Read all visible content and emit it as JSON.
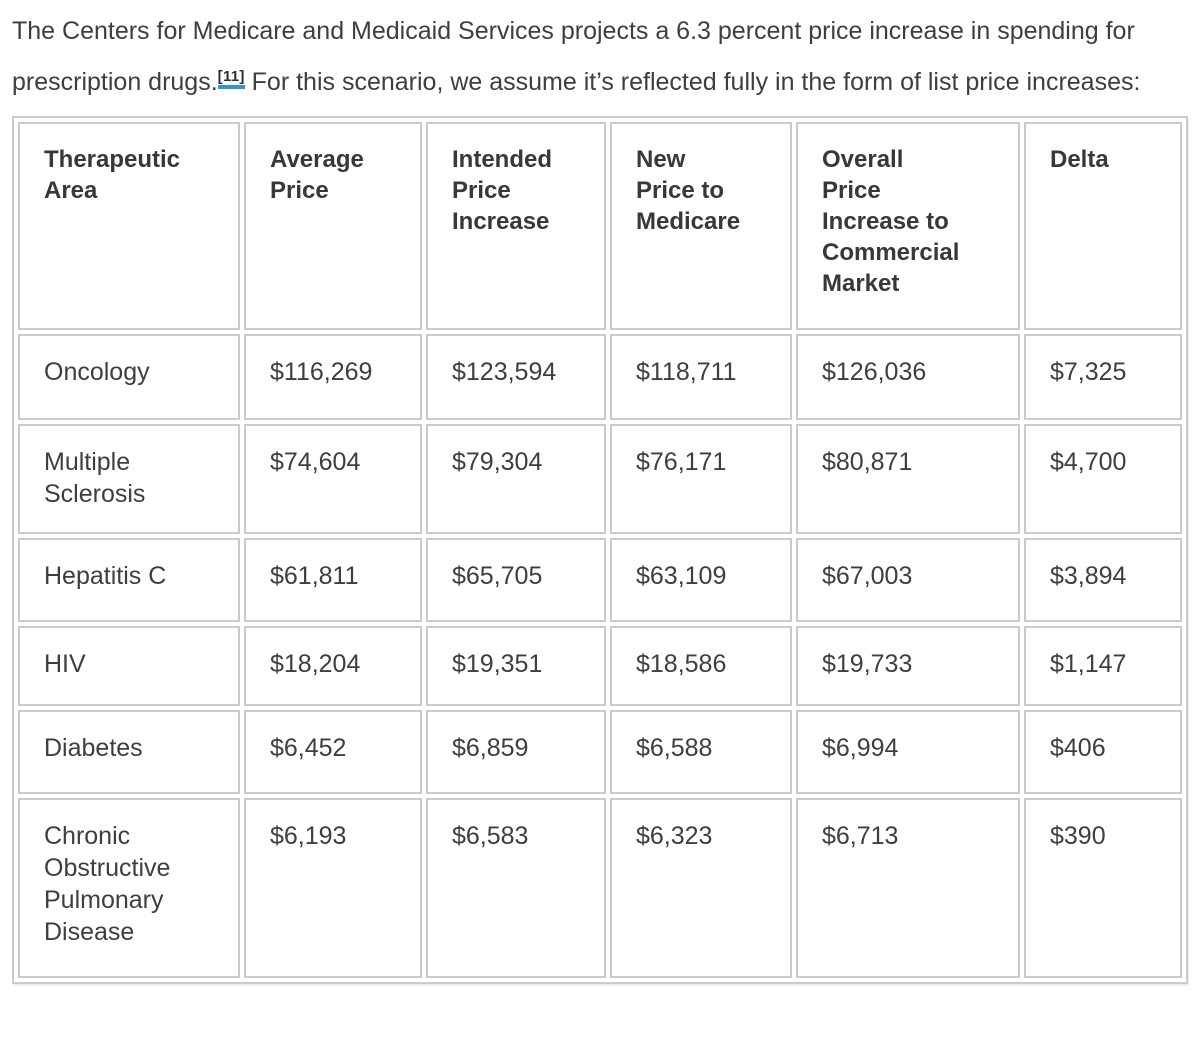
{
  "intro": {
    "text_before_ref": "The Centers for Medicare and Medicaid Services projects a 6.3 percent price increase in spending for prescription drugs.",
    "footnote_ref": "[11]",
    "text_after_ref": " For this scenario, we assume it’s reflected fully in the form of list price increases:"
  },
  "table": {
    "columns": [
      "Therapeutic Area",
      "Average Price",
      "Intended Price Increase",
      "New Price to Medicare",
      "Overall Price Increase to Commercial Market",
      "Delta"
    ],
    "rows": [
      [
        "Oncology",
        "$116,269",
        "$123,594",
        "$118,711",
        "$126,036",
        "$7,325"
      ],
      [
        "Multiple Sclerosis",
        "$74,604",
        "$79,304",
        "$76,171",
        "$80,871",
        "$4,700"
      ],
      [
        "Hepatitis C",
        "$61,811",
        "$65,705",
        "$63,109",
        "$67,003",
        "$3,894"
      ],
      [
        "HIV",
        "$18,204",
        "$19,351",
        "$18,586",
        "$19,733",
        "$1,147"
      ],
      [
        "Diabetes",
        "$6,452",
        "$6,859",
        "$6,588",
        "$6,994",
        "$406"
      ],
      [
        "Chronic Obstructive Pulmonary Disease",
        "$6,193",
        "$6,583",
        "$6,323",
        "$6,713",
        "$390"
      ]
    ]
  },
  "colors": {
    "text": "#3e3e3e",
    "table_border": "#cbcbcb",
    "footnote_underline": "#2e97d1"
  }
}
